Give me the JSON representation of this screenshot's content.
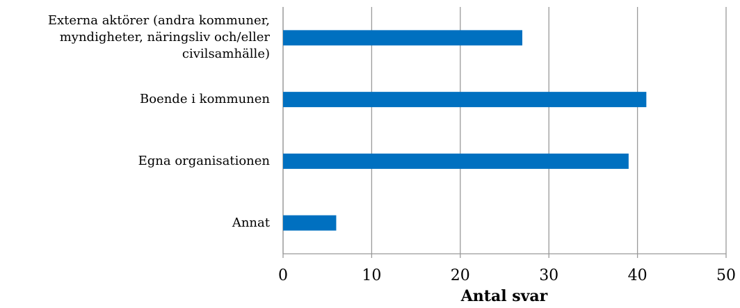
{
  "chart_data": {
    "type": "bar",
    "orientation": "horizontal",
    "categories": [
      "Externa aktörer (andra kommuner, myndigheter, näringsliv och/eller civilsamhälle)",
      "Boende i kommunen",
      "Egna organisationen",
      "Annat"
    ],
    "values": [
      27,
      41,
      39,
      6
    ],
    "color": "#0070c0",
    "xlabel": "Antal svar",
    "xlim": [
      0,
      50
    ],
    "xticks": [
      0,
      10,
      20,
      30,
      40,
      50
    ],
    "grid": true
  }
}
